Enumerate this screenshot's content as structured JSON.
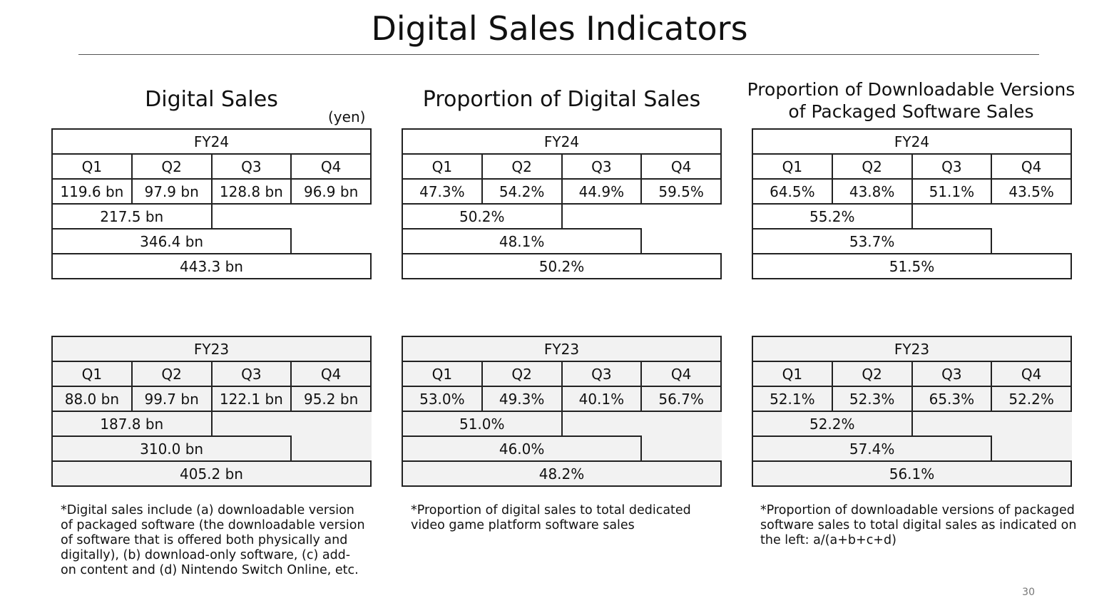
{
  "title": "Digital Sales Indicators",
  "sections": [
    {
      "heading": "Digital Sales",
      "unit": "(yen)",
      "fy24": {
        "year": "FY24",
        "quarters": [
          "Q1",
          "Q2",
          "Q3",
          "Q4"
        ],
        "values": [
          "119.6 bn",
          "97.9 bn",
          "128.8 bn",
          "96.9 bn"
        ],
        "h1": "217.5 bn",
        "q3cum": "346.4 bn",
        "full": "443.3 bn"
      },
      "fy23": {
        "year": "FY23",
        "quarters": [
          "Q1",
          "Q2",
          "Q3",
          "Q4"
        ],
        "values": [
          "88.0 bn",
          "99.7 bn",
          "122.1 bn",
          "95.2 bn"
        ],
        "h1": "187.8 bn",
        "q3cum": "310.0 bn",
        "full": "405.2 bn"
      },
      "note": "*Digital sales include (a) downloadable version\nof packaged software (the downloadable version\nof software that is offered both physically and\ndigitally), (b) download-only software, (c) add-\non content and (d) Nintendo Switch Online, etc."
    },
    {
      "heading": "Proportion of Digital Sales",
      "fy24": {
        "year": "FY24",
        "quarters": [
          "Q1",
          "Q2",
          "Q3",
          "Q4"
        ],
        "values": [
          "47.3%",
          "54.2%",
          "44.9%",
          "59.5%"
        ],
        "h1": "50.2%",
        "q3cum": "48.1%",
        "full": "50.2%"
      },
      "fy23": {
        "year": "FY23",
        "quarters": [
          "Q1",
          "Q2",
          "Q3",
          "Q4"
        ],
        "values": [
          "53.0%",
          "49.3%",
          "40.1%",
          "56.7%"
        ],
        "h1": "51.0%",
        "q3cum": "46.0%",
        "full": "48.2%"
      },
      "note": "*Proportion of digital sales to total dedicated\nvideo game platform software sales"
    },
    {
      "heading_line1": "Proportion of Downloadable Versions",
      "heading_line2": "of Packaged Software Sales",
      "fy24": {
        "year": "FY24",
        "quarters": [
          "Q1",
          "Q2",
          "Q3",
          "Q4"
        ],
        "values": [
          "64.5%",
          "43.8%",
          "51.1%",
          "43.5%"
        ],
        "h1": "55.2%",
        "q3cum": "53.7%",
        "full": "51.5%"
      },
      "fy23": {
        "year": "FY23",
        "quarters": [
          "Q1",
          "Q2",
          "Q3",
          "Q4"
        ],
        "values": [
          "52.1%",
          "52.3%",
          "65.3%",
          "52.2%"
        ],
        "h1": "52.2%",
        "q3cum": "57.4%",
        "full": "56.1%"
      },
      "note": "*Proportion of downloadable versions of packaged\nsoftware sales to total digital sales as indicated on\nthe left: a/(a+b+c+d)"
    }
  ],
  "page_number": "30"
}
